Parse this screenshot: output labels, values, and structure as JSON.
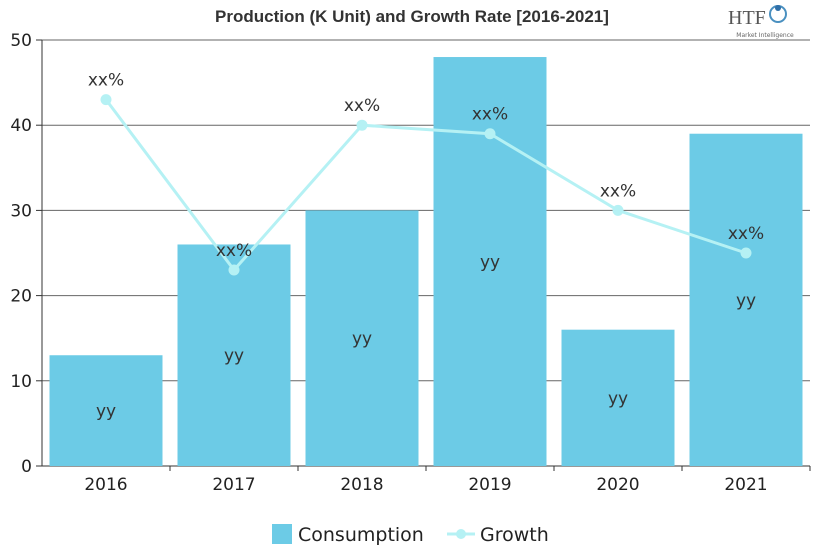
{
  "chart_data": {
    "type": "bar",
    "title": "Production (K Unit) and Growth Rate [2016-2021]",
    "categories": [
      "2016",
      "2017",
      "2018",
      "2019",
      "2020",
      "2021"
    ],
    "ylim": [
      0,
      50
    ],
    "yticks": [
      0,
      10,
      20,
      30,
      40,
      50
    ],
    "grid": true,
    "legend_placement": "bottom",
    "series": [
      {
        "name": "Consumption",
        "kind": "bar",
        "color": "#6ccbe6",
        "values": [
          13,
          26,
          30,
          48,
          16,
          39
        ],
        "data_labels": [
          "yy",
          "yy",
          "yy",
          "yy",
          "yy",
          "yy"
        ]
      },
      {
        "name": "Growth",
        "kind": "line",
        "color": "#b5f1f4",
        "values": [
          43,
          23,
          40,
          39,
          30,
          25
        ],
        "data_labels": [
          "xx%",
          "xx%",
          "xx%",
          "xx%",
          "xx%",
          "xx%"
        ]
      }
    ]
  },
  "logo": {
    "text": "HTF",
    "subtext": "Market Intelligence"
  }
}
